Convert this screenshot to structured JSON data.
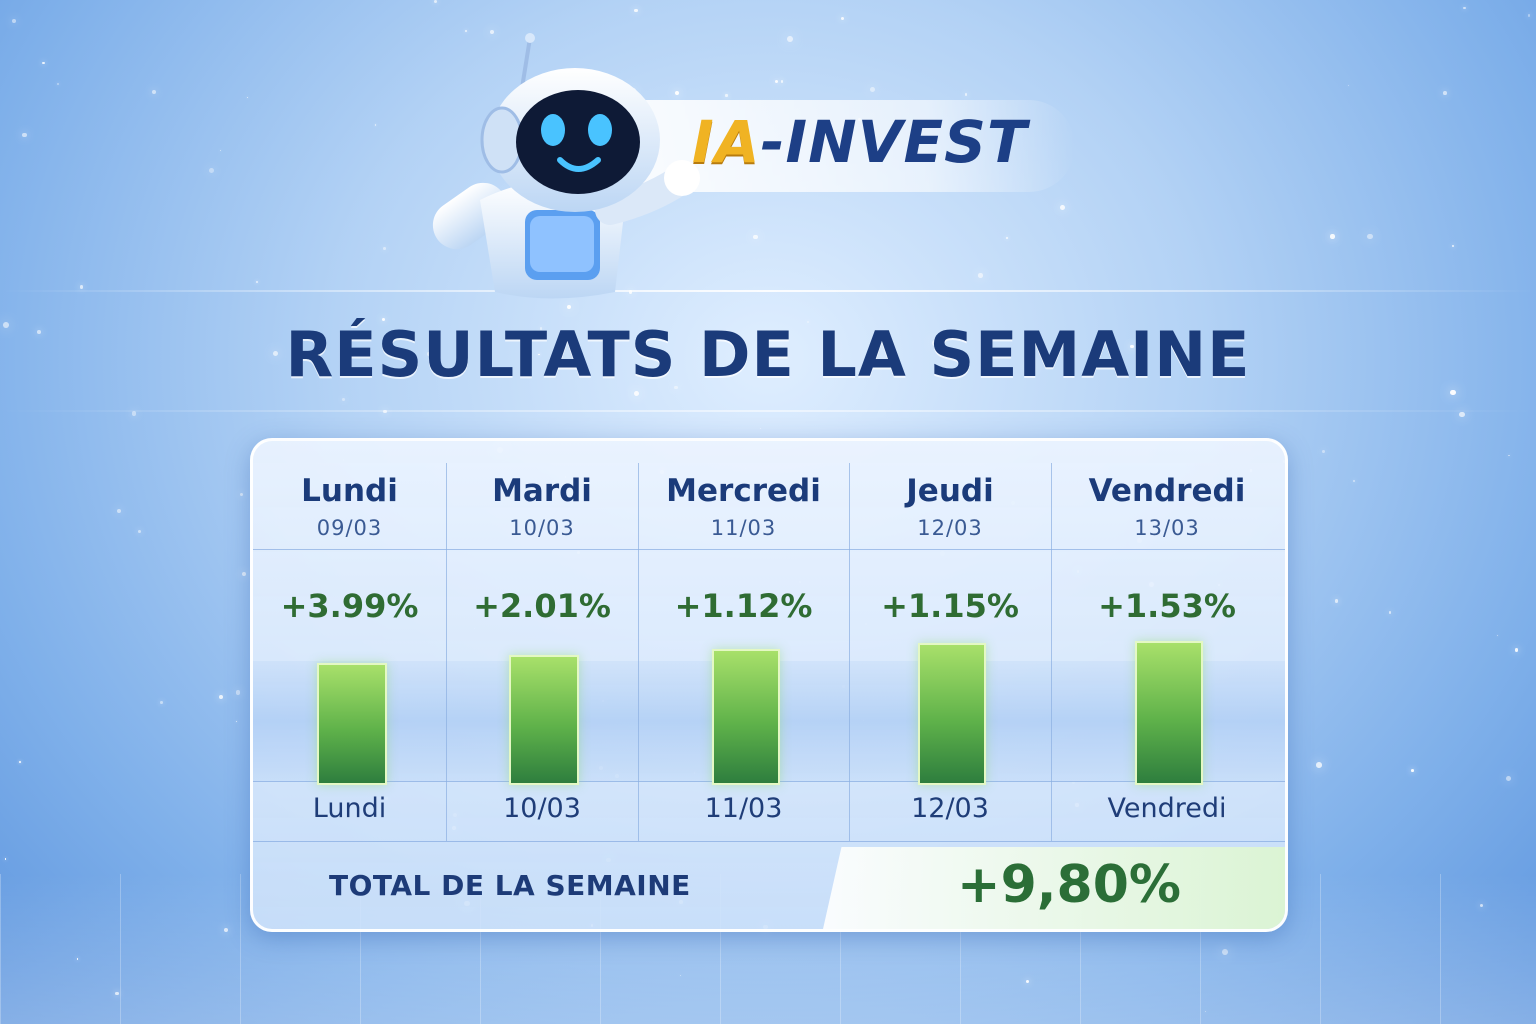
{
  "brand": {
    "prefix": "IA",
    "suffix": "-INVEST"
  },
  "title": "RÉSULTATS DE LA SEMAINE",
  "days": [
    {
      "day": "Lundi",
      "date": "09/03",
      "pct": "+3.99%",
      "axis_label": "Lundi"
    },
    {
      "day": "Mardi",
      "date": "10/03",
      "pct": "+2.01%",
      "axis_label": "10/03"
    },
    {
      "day": "Mercredi",
      "date": "11/03",
      "pct": "+1.12%",
      "axis_label": "11/03"
    },
    {
      "day": "Jeudi",
      "date": "12/03",
      "pct": "+1.15%",
      "axis_label": "12/03"
    },
    {
      "day": "Vendredi",
      "date": "13/03",
      "pct": "+1.53%",
      "axis_label": "Vendredi"
    }
  ],
  "total": {
    "label": "TOTAL DE LA SEMAINE",
    "value": "+9,80%"
  },
  "colors": {
    "accent_green": "#2f6c33",
    "title_navy": "#1b3b7a",
    "logo_gold": "#f0b323"
  },
  "chart_data": {
    "type": "bar",
    "categories": [
      "Lundi",
      "10/03",
      "11/03",
      "12/03",
      "Vendredi"
    ],
    "values": [
      3.99,
      2.01,
      1.12,
      1.15,
      1.53
    ],
    "title": "RÉSULTATS DE LA SEMAINE",
    "xlabel": "",
    "ylabel": "",
    "grid": false,
    "legend": "none"
  }
}
